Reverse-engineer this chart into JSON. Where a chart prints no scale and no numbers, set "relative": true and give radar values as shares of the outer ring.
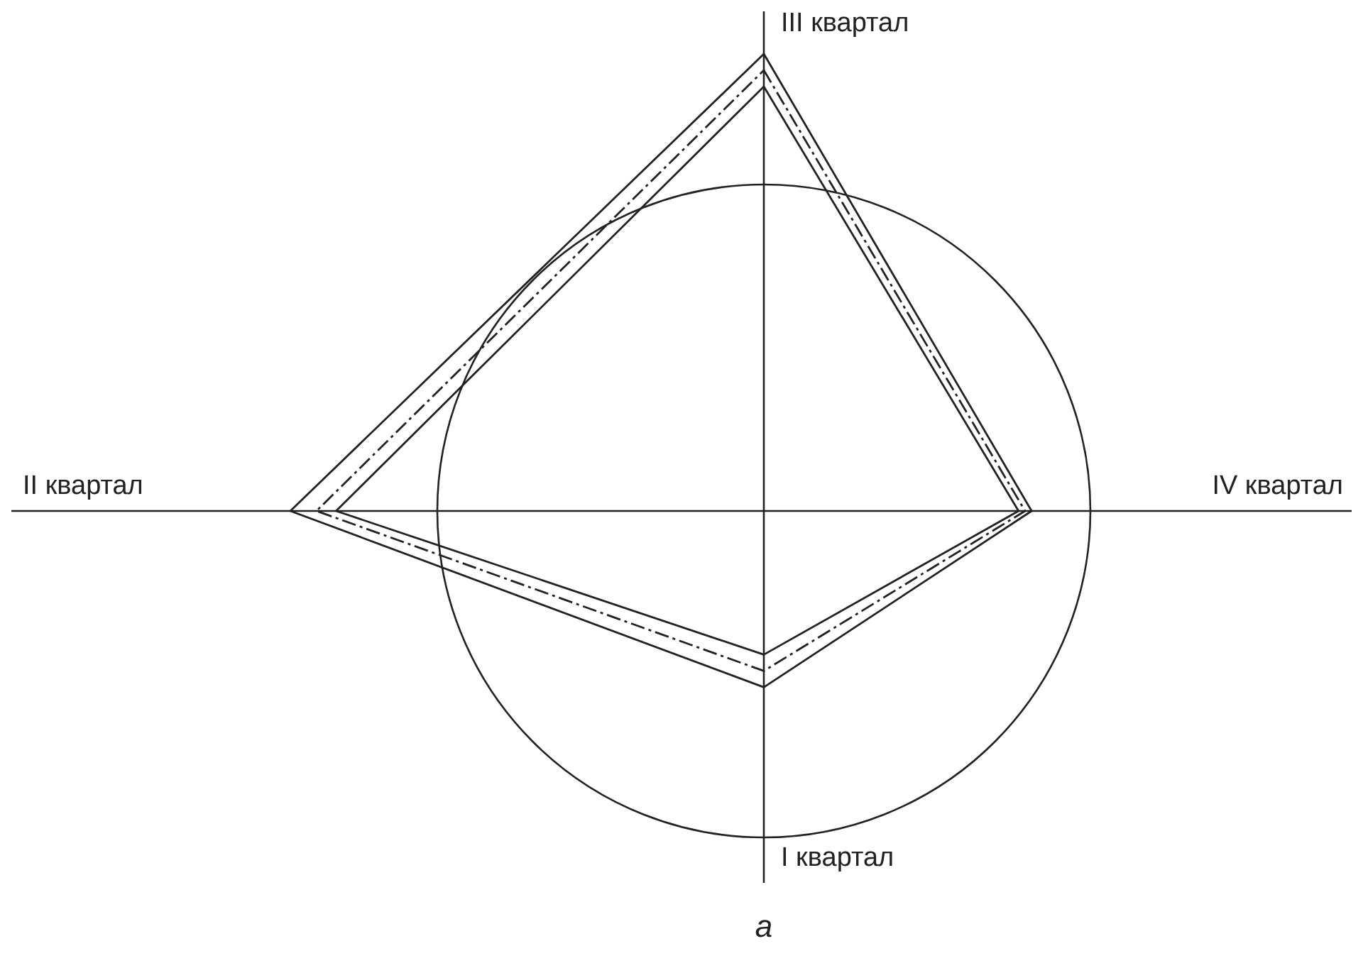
{
  "chart_data": {
    "type": "radar",
    "relative": true,
    "categories": [
      "III квартал",
      "IV квартал",
      "I квартал",
      "II квартал"
    ],
    "series": [
      {
        "color": "#222222",
        "line_style": "solid",
        "values": [
          1.4,
          0.82,
          0.54,
          1.45
        ]
      },
      {
        "color": "#222222",
        "line_style": "dashed",
        "values": [
          1.35,
          0.8,
          0.49,
          1.37
        ]
      },
      {
        "color": "#222222",
        "line_style": "solid",
        "values": [
          1.3,
          0.78,
          0.44,
          1.31
        ]
      }
    ],
    "grid": true,
    "annotations": [
      "а"
    ],
    "marker": "none"
  }
}
